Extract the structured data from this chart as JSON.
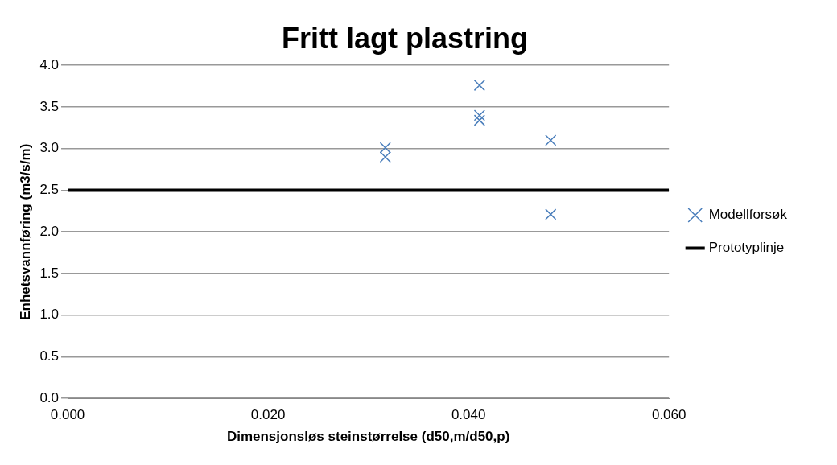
{
  "chart_data": {
    "type": "scatter",
    "title": "Fritt lagt plastring",
    "xlabel": "Dimensjonsløs steinstørrelse (d50,m/d50,p)",
    "ylabel": "Enhetsvannføring (m3/s/m)",
    "series": [
      {
        "name": "Modellforsøk",
        "type": "scatter",
        "marker": "cross",
        "color": "#4a7ebb",
        "x": [
          0.0317,
          0.0317,
          0.0411,
          0.0411,
          0.0411,
          0.0482,
          0.0482
        ],
        "values": [
          3.01,
          2.9,
          3.76,
          3.4,
          3.34,
          3.1,
          2.21
        ]
      },
      {
        "name": "Prototyplinje",
        "type": "line",
        "marker": "none",
        "color": "#000000",
        "x": [
          0,
          0.06
        ],
        "values": [
          2.5,
          2.5
        ]
      }
    ],
    "xlim": [
      0,
      0.06
    ],
    "xticks": [
      {
        "value": 0,
        "label": "0.000"
      },
      {
        "value": 0.02,
        "label": "0.020"
      },
      {
        "value": 0.04,
        "label": "0.040"
      },
      {
        "value": 0.06,
        "label": "0.060"
      }
    ],
    "ylim": [
      0,
      4
    ],
    "yticks": [
      {
        "value": 0,
        "label": "0.0"
      },
      {
        "value": 0.5,
        "label": "0.5"
      },
      {
        "value": 1,
        "label": "1.0"
      },
      {
        "value": 1.5,
        "label": "1.5"
      },
      {
        "value": 2,
        "label": "2.0"
      },
      {
        "value": 2.5,
        "label": "2.5"
      },
      {
        "value": 3,
        "label": "3.0"
      },
      {
        "value": 3.5,
        "label": "3.5"
      },
      {
        "value": 4,
        "label": "4.0"
      }
    ],
    "grid": "y",
    "legend": "right"
  }
}
